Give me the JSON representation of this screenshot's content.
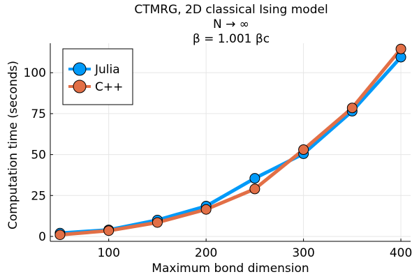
{
  "chart_data": {
    "type": "line",
    "title_lines": [
      "CTMRG, 2D classical Ising model",
      "N → ∞",
      "β = 1.001 βc"
    ],
    "xlabel": "Maximum bond dimension",
    "ylabel": "Computation time (seconds)",
    "xlim": [
      40,
      410
    ],
    "ylim": [
      -3,
      118
    ],
    "xticks": [
      100,
      200,
      300,
      400
    ],
    "yticks": [
      0,
      25,
      50,
      75,
      100
    ],
    "grid": true,
    "legend_position": "top-left",
    "x": [
      50,
      100,
      150,
      200,
      250,
      300,
      350,
      400
    ],
    "series": [
      {
        "name": "Julia",
        "color": "#009af9",
        "values": [
          2.0,
          4.0,
          10.0,
          18.5,
          35.5,
          50.5,
          76.5,
          109.5
        ]
      },
      {
        "name": "C++",
        "color": "#e26f46",
        "values": [
          1.0,
          3.5,
          8.5,
          16.5,
          29.0,
          53.0,
          78.5,
          114.5
        ]
      }
    ]
  }
}
